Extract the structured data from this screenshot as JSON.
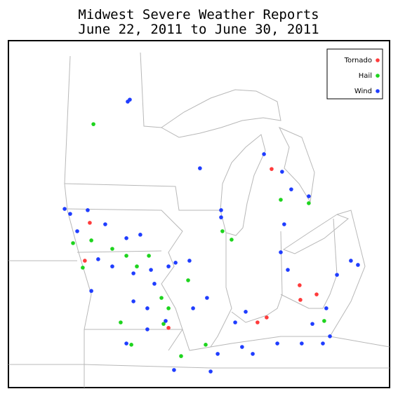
{
  "map": {
    "title": [
      "Midwest Severe Weather Reports",
      "June 22, 2011 to June 30, 2011"
    ],
    "series": [
      {
        "name": "Tornado",
        "color": "#ff3b3b",
        "lon": [
          -85.69,
          -95.23,
          -95.49,
          -84.22,
          -83.33,
          -84.18,
          -85.95,
          -86.43,
          -91.1
        ],
        "lat": [
          44.62,
          42.45,
          40.92,
          39.93,
          39.56,
          39.34,
          38.63,
          38.43,
          38.21
        ]
      },
      {
        "name": "Hail",
        "color": "#1ed41e",
        "lon": [
          -95.04,
          -96.11,
          -95.15,
          -94.05,
          -95.6,
          -93.31,
          -92.76,
          -92.13,
          -91.47,
          -91.1,
          -91.36,
          -93.61,
          -93.05,
          -90.44,
          -88.27,
          -87.79,
          -85.21,
          -83.74,
          -82.93,
          -89.15,
          -90.07
        ],
        "lat": [
          46.43,
          41.63,
          41.74,
          41.4,
          40.64,
          41.12,
          40.69,
          41.12,
          39.42,
          39.0,
          38.37,
          38.43,
          37.53,
          37.07,
          42.11,
          41.77,
          43.38,
          43.24,
          38.49,
          37.53,
          40.13
        ]
      },
      {
        "name": "Wind",
        "color": "#1f3dff",
        "lon": [
          -93.13,
          -93.24,
          -89.45,
          -86.09,
          -85.14,
          -96.55,
          -96.26,
          -95.34,
          -94.42,
          -95.89,
          -93.31,
          -92.58,
          -94.79,
          -94.05,
          -92.94,
          -92.02,
          -91.1,
          -90.73,
          -90.0,
          -91.84,
          -92.94,
          -92.21,
          -95.15,
          -89.81,
          -89.08,
          -88.34,
          -88.34,
          -85.03,
          -84.66,
          -83.74,
          -85.21,
          -84.84,
          -82.26,
          -81.53,
          -81.16,
          -82.82,
          -83.55,
          -84.11,
          -83.0,
          -82.63,
          -87.24,
          -86.68,
          -85.39,
          -88.52,
          -88.89,
          -90.81,
          -93.31,
          -87.6,
          -87.05,
          -92.21,
          -91.25
        ],
        "lat": [
          47.42,
          47.34,
          44.65,
          45.22,
          44.51,
          43.01,
          42.81,
          42.96,
          42.39,
          42.11,
          41.83,
          41.97,
          40.98,
          40.69,
          40.41,
          40.55,
          40.69,
          40.84,
          40.92,
          39.99,
          39.28,
          39.0,
          39.7,
          39.0,
          39.42,
          42.96,
          42.67,
          42.39,
          43.8,
          43.52,
          41.26,
          40.55,
          40.35,
          40.92,
          40.75,
          39.0,
          38.37,
          37.58,
          37.58,
          37.87,
          37.44,
          37.16,
          37.58,
          37.16,
          36.45,
          36.51,
          37.58,
          38.43,
          38.86,
          38.15,
          38.49
        ]
      }
    ]
  }
}
